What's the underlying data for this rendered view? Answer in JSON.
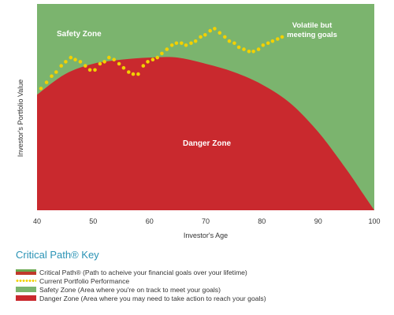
{
  "chart_data": {
    "type": "line",
    "xlabel": "Investor's Age",
    "ylabel": "Investor's Portfolio Value",
    "xlim": [
      40,
      100
    ],
    "xticks": [
      40,
      50,
      60,
      70,
      80,
      90,
      100
    ],
    "ylim": [
      0,
      100
    ],
    "zones": [
      {
        "name": "Safety Zone",
        "label": "Safety Zone",
        "color": "#7bb46e"
      },
      {
        "name": "Danger Zone",
        "label": "Danger Zone",
        "color": "#c9292e"
      }
    ],
    "annotation": "Volatile but meeting goals",
    "critical_path": {
      "x": [
        40,
        45,
        50,
        55,
        60,
        65,
        70,
        75,
        80,
        85,
        90,
        95,
        98,
        100
      ],
      "y": [
        56,
        66,
        71,
        73,
        74,
        74,
        71,
        67,
        61,
        52,
        38,
        20,
        8,
        0
      ]
    },
    "series": [
      {
        "x": [
          40.7,
          41.7,
          42.6,
          43.4,
          44.3,
          45.1,
          46,
          46.8,
          47.7,
          48.6,
          49.4,
          50.3,
          51.2,
          52,
          52.8,
          53.7,
          54.6,
          55.4,
          56.3,
          57.1,
          58,
          58.9,
          59.7,
          60.6,
          61.4,
          62.2,
          63.1,
          64,
          64.8,
          65.7,
          66.5,
          67.4,
          68.2,
          69.1,
          69.9,
          70.8,
          71.6,
          72.5,
          73.4,
          74.2,
          75.1,
          75.9,
          76.8,
          77.7,
          78.5,
          79.4,
          80.2,
          81.1,
          81.9,
          82.8,
          83.6
        ],
        "y": [
          59,
          62,
          65,
          67,
          70,
          72,
          74,
          73,
          72,
          70,
          68,
          68,
          71,
          72,
          74,
          73,
          71,
          69,
          67,
          66,
          66,
          70,
          72,
          73,
          74,
          76,
          78,
          80,
          81,
          81,
          80,
          81,
          82,
          84,
          85,
          87,
          88,
          86,
          84,
          82,
          81,
          79,
          78,
          77,
          77,
          78,
          80,
          81,
          82,
          83,
          84
        ]
      }
    ]
  },
  "key": {
    "title": "Critical Path® Key",
    "items": [
      {
        "label": "Critical Path® (Path to acheive your financial goals over your lifetime)"
      },
      {
        "label": "Current Portfolio Performance"
      },
      {
        "label": "Safety Zone (Area where you're on track to meet your goals)"
      },
      {
        "label": "Danger Zone (Area where you may need to take action to reach your goals)"
      }
    ]
  }
}
